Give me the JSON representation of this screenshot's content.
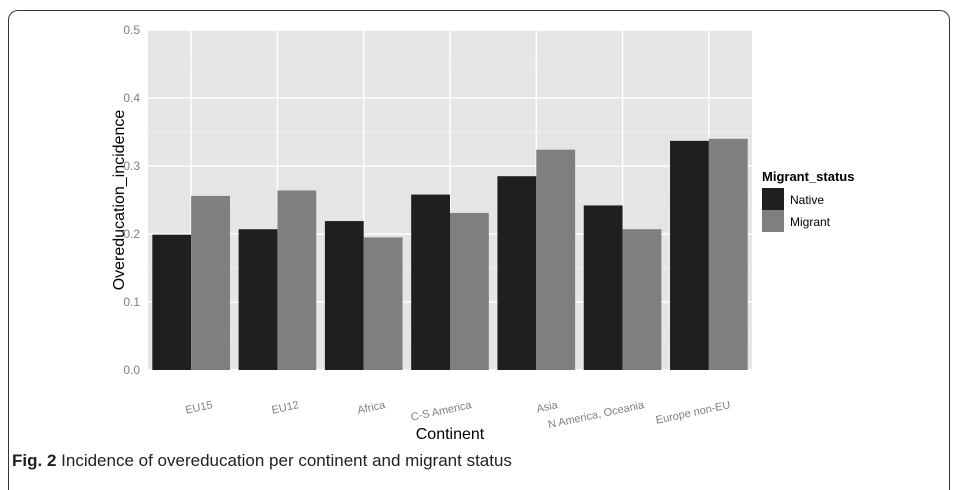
{
  "caption": {
    "label": "Fig. 2",
    "text": "Incidence of overeducation per continent and migrant status"
  },
  "colors": {
    "panel": "#e5e5e5",
    "grid_major": "#ffffff",
    "grid_minor": "#f2f2f2",
    "native": "#1f1f1f",
    "migrant": "#7f7f7f",
    "tick_text": "#7f7f7f"
  },
  "chart_data": {
    "type": "bar",
    "title": "",
    "xlabel": "Continent",
    "ylabel": "Overeducation_incidence",
    "ylim": [
      0,
      0.5
    ],
    "yticks": [
      "0.0",
      "0.1",
      "0.2",
      "0.3",
      "0.4",
      "0.5"
    ],
    "ytick_values": [
      0,
      0.1,
      0.2,
      0.3,
      0.4,
      0.5
    ],
    "grid": true,
    "legend_title": "Migrant_status",
    "legend_position": "right",
    "categories": [
      "EU15",
      "EU12",
      "Africa",
      "C-S America",
      "Asia",
      "N America, Oceania",
      "Europe non-EU"
    ],
    "series": [
      {
        "name": "Native",
        "values": [
          0.199,
          0.207,
          0.219,
          0.258,
          0.285,
          0.242,
          0.337
        ]
      },
      {
        "name": "Migrant",
        "values": [
          0.256,
          0.264,
          0.195,
          0.231,
          0.324,
          0.207,
          0.34
        ]
      }
    ]
  }
}
